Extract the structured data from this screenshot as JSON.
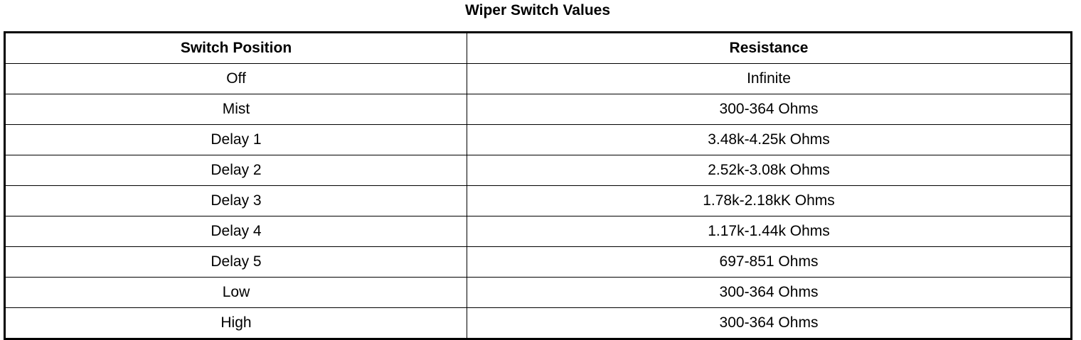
{
  "title": "Wiper Switch Values",
  "table": {
    "columns": [
      "Switch Position",
      "Resistance"
    ],
    "rows": [
      [
        "Off",
        "Infinite"
      ],
      [
        "Mist",
        "300-364 Ohms"
      ],
      [
        "Delay 1",
        "3.48k-4.25k Ohms"
      ],
      [
        "Delay 2",
        "2.52k-3.08k Ohms"
      ],
      [
        "Delay 3",
        "1.78k-2.18kK Ohms"
      ],
      [
        "Delay 4",
        "1.17k-1.44k Ohms"
      ],
      [
        "Delay 5",
        "697-851 Ohms"
      ],
      [
        "Low",
        "300-364 Ohms"
      ],
      [
        "High",
        "300-364 Ohms"
      ]
    ]
  }
}
